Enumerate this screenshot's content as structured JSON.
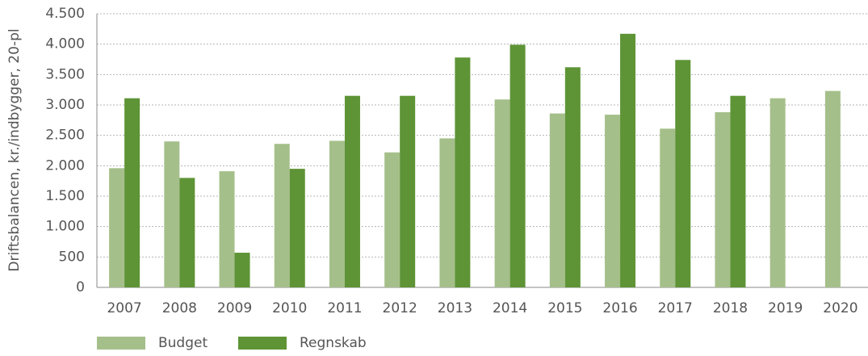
{
  "chart_data": {
    "type": "bar",
    "y_axis_label": "Driftsbalancen, kr./indbygger, 20-pl",
    "categories": [
      "2007",
      "2008",
      "2009",
      "2010",
      "2011",
      "2012",
      "2013",
      "2014",
      "2015",
      "2016",
      "2017",
      "2018",
      "2019",
      "2020"
    ],
    "series": [
      {
        "name": "Budget",
        "color": "#a5bf8a",
        "values": [
          1960,
          2400,
          1910,
          2360,
          2410,
          2220,
          2450,
          3090,
          2860,
          2840,
          2610,
          2880,
          3110,
          3230
        ]
      },
      {
        "name": "Regnskab",
        "color": "#5e9436",
        "values": [
          3110,
          1800,
          570,
          1950,
          3150,
          3150,
          3780,
          3990,
          3620,
          4170,
          3740,
          3150,
          null,
          null
        ]
      }
    ],
    "ylim": [
      0,
      4500
    ],
    "yticks": [
      0,
      500,
      {
        "value": 1000,
        "label": "1.000"
      },
      {
        "value": 1500,
        "label": "1.500"
      },
      {
        "value": 2000,
        "label": "2.000"
      },
      {
        "value": 2500,
        "label": "2.500"
      },
      {
        "value": 3000,
        "label": "3.000"
      },
      {
        "value": 3500,
        "label": "3.500"
      },
      {
        "value": 4000,
        "label": "4.000"
      },
      {
        "value": 4500,
        "label": "4.500"
      }
    ],
    "grid": true,
    "legend": "bottom-left"
  }
}
